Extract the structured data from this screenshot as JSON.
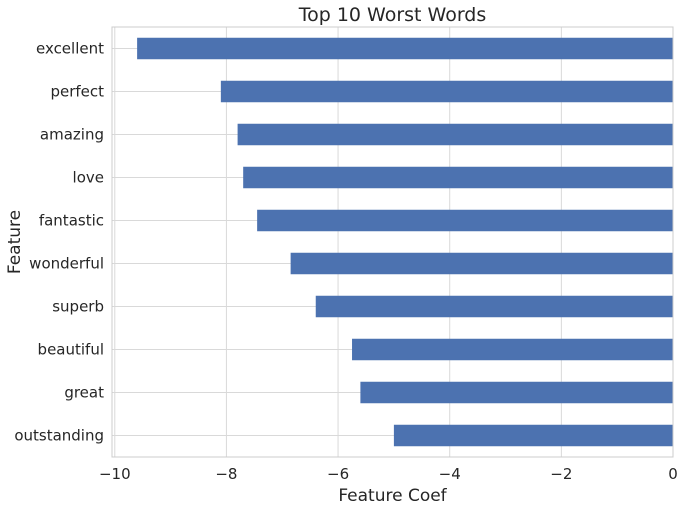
{
  "chart_data": {
    "type": "bar",
    "orientation": "horizontal",
    "title": "Top 10 Worst Words",
    "xlabel": "Feature Coef",
    "ylabel": "Feature",
    "categories": [
      "excellent",
      "perfect",
      "amazing",
      "love",
      "fantastic",
      "wonderful",
      "superb",
      "beautiful",
      "great",
      "outstanding"
    ],
    "values": [
      -9.6,
      -8.1,
      -7.8,
      -7.7,
      -7.45,
      -6.85,
      -6.4,
      -5.75,
      -5.6,
      -5.0
    ],
    "xlim": [
      -10.05,
      0
    ],
    "xticks": [
      -10,
      -8,
      -6,
      -4,
      -2,
      0
    ],
    "xtick_labels": [
      "−10",
      "−8",
      "−6",
      "−4",
      "−2",
      "0"
    ],
    "grid": true,
    "legend": "none",
    "colors": {
      "bar": "#4c72b0",
      "grid": "#d9d9d9",
      "frame": "#cccccc",
      "text": "#262626"
    }
  }
}
